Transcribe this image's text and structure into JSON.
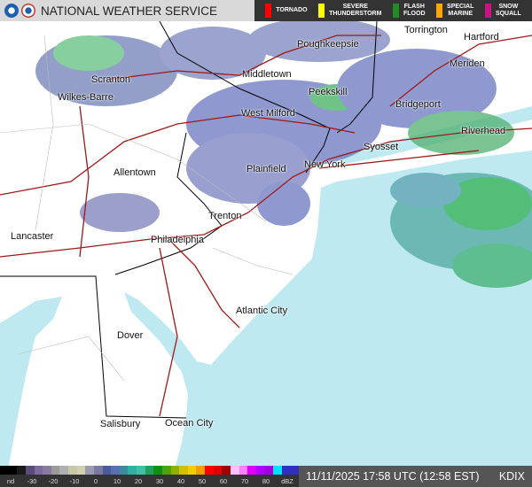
{
  "header": {
    "title": "NATIONAL WEATHER SERVICE",
    "warnings": [
      {
        "label": "TORNADO",
        "color": "#ff0000"
      },
      {
        "label": "SEVERE\nTHUNDERSTORM",
        "color": "#ffff00"
      },
      {
        "label": "FLASH\nFLOOD",
        "color": "#228b22"
      },
      {
        "label": "SPECIAL\nMARINE",
        "color": "#ffa500"
      },
      {
        "label": "SNOW\nSQUALL",
        "color": "#c71585"
      }
    ]
  },
  "map": {
    "cities": [
      {
        "name": "Poughkeepsie"
      },
      {
        "name": "Torrington"
      },
      {
        "name": "Hartford"
      },
      {
        "name": "Scranton"
      },
      {
        "name": "Meriden"
      },
      {
        "name": "Middletown"
      },
      {
        "name": "Wilkes-Barre"
      },
      {
        "name": "Peekskill"
      },
      {
        "name": "Bridgeport"
      },
      {
        "name": "West Milford"
      },
      {
        "name": "Riverhead"
      },
      {
        "name": "Syosset"
      },
      {
        "name": "Plainfield"
      },
      {
        "name": "New York"
      },
      {
        "name": "Allentown"
      },
      {
        "name": "Trenton"
      },
      {
        "name": "Lancaster"
      },
      {
        "name": "Philadelphia"
      },
      {
        "name": "Atlantic City"
      },
      {
        "name": "Dover"
      },
      {
        "name": "Salisbury"
      },
      {
        "name": "Ocean City"
      }
    ],
    "ocean_color": "#bfe9f1"
  },
  "legend": {
    "unit": "dBZ",
    "ticks": [
      "nd",
      "-30",
      "-20",
      "-10",
      "0",
      "10",
      "20",
      "30",
      "40",
      "50",
      "60",
      "70",
      "80",
      "dBZ"
    ],
    "colors": [
      "#000000",
      "#000000",
      "#1a1a1a",
      "#5a4a7a",
      "#7a6aa0",
      "#8a7aa0",
      "#9a9a9a",
      "#b0b0b0",
      "#c8c8a8",
      "#d0d0b0",
      "#9a9ab0",
      "#7a7aa0",
      "#4a5a9a",
      "#5a70b0",
      "#3a8aa0",
      "#30b0a0",
      "#40c0a0",
      "#20a060",
      "#109010",
      "#50a010",
      "#90b000",
      "#d0c000",
      "#f0d000",
      "#f0a000",
      "#ff0000",
      "#e00000",
      "#a00000",
      "#ffc0ff",
      "#ff80ff",
      "#e000ff",
      "#b000ff",
      "#a000e0",
      "#00e0ff",
      "#3030c0",
      "#3030c0"
    ],
    "timestamp": "11/11/2025 17:58 UTC (12:58 EST)",
    "station": "KDIX"
  }
}
